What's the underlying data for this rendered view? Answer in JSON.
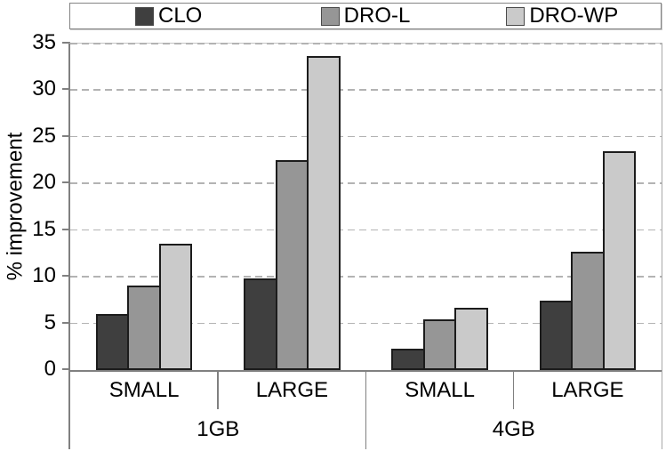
{
  "chart_data": {
    "type": "bar",
    "title": "",
    "ylabel": "% improvement",
    "ylim": [
      0,
      35
    ],
    "yticks": [
      0,
      5,
      10,
      15,
      20,
      25,
      30,
      35
    ],
    "grid": "horizontal-dashed",
    "legend_position": "top",
    "group_labels": [
      "SMALL",
      "LARGE",
      "SMALL",
      "LARGE"
    ],
    "super_groups": [
      "1GB",
      "4GB"
    ],
    "series": [
      {
        "name": "CLO",
        "color": "#3f3f3f",
        "values": [
          6.0,
          9.8,
          2.3,
          7.4
        ]
      },
      {
        "name": "DRO-L",
        "color": "#969696",
        "values": [
          9.1,
          22.5,
          5.4,
          12.7
        ]
      },
      {
        "name": "DRO-WP",
        "color": "#cacaca",
        "values": [
          13.5,
          33.7,
          6.7,
          23.5
        ]
      }
    ],
    "colors": {
      "bar_border": "#1c1c1c",
      "axis": "#808080",
      "gridline": "#b3b3b3",
      "legend_border": "#848484"
    }
  }
}
